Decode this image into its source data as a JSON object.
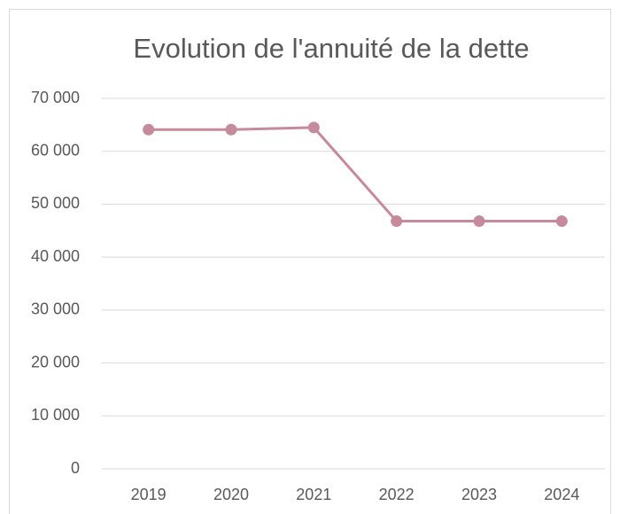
{
  "chart_data": {
    "type": "line",
    "title": "Evolution de l'annuité de la dette",
    "categories": [
      "2019",
      "2020",
      "2021",
      "2022",
      "2023",
      "2024"
    ],
    "values": [
      64100,
      64100,
      64500,
      46800,
      46800,
      46800
    ],
    "color": "#c58a9c",
    "ylim": [
      0,
      70000
    ],
    "yticks": [
      0,
      {
        "value": 10000,
        "label": "10 000"
      },
      {
        "value": 20000,
        "label": "20 000"
      },
      {
        "value": 30000,
        "label": "30 000"
      },
      {
        "value": 40000,
        "label": "40 000"
      },
      {
        "value": 50000,
        "label": "50 000"
      },
      {
        "value": 60000,
        "label": "60 000"
      },
      {
        "value": 70000,
        "label": "70 000"
      }
    ],
    "grid": true
  }
}
